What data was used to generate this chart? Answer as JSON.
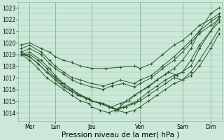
{
  "background_color": "#cce8d8",
  "grid_color": "#88c4a0",
  "line_color": "#2d5a2d",
  "marker": "+",
  "xlabel": "Pression niveau de la mer( hPa )",
  "xlabel_fontsize": 7.5,
  "yticks": [
    1014,
    1015,
    1016,
    1017,
    1018,
    1019,
    1020,
    1021,
    1022,
    1023
  ],
  "ylim": [
    1013.3,
    1023.5
  ],
  "xlim": [
    -0.1,
    7.1
  ],
  "xtick_positions": [
    0.3,
    1.2,
    2.5,
    4.2,
    5.7,
    6.7
  ],
  "xtick_labels": [
    "Mer",
    "Lun",
    "Jeu",
    "Ven",
    "Sam",
    "Dim"
  ],
  "vlines": [
    0.3,
    1.2,
    2.5,
    4.2,
    5.7,
    6.7
  ],
  "series": [
    {
      "x": [
        0.0,
        0.3,
        0.7,
        1.0,
        1.2,
        1.5,
        1.8,
        2.1,
        2.5,
        3.0,
        3.5,
        4.0,
        4.2,
        4.6,
        5.0,
        5.4,
        5.7,
        6.0,
        6.3,
        6.7,
        7.0
      ],
      "y": [
        1019.8,
        1020.0,
        1019.5,
        1019.2,
        1018.8,
        1018.5,
        1018.3,
        1018.0,
        1017.8,
        1017.8,
        1017.9,
        1018.0,
        1017.8,
        1018.2,
        1019.0,
        1019.8,
        1020.2,
        1020.8,
        1021.5,
        1022.0,
        1022.5
      ]
    },
    {
      "x": [
        0.0,
        0.3,
        0.7,
        1.0,
        1.2,
        1.5,
        1.8,
        2.1,
        2.5,
        2.9,
        3.2,
        3.5,
        4.0,
        4.2,
        4.6,
        5.0,
        5.4,
        5.7,
        6.0,
        6.3,
        6.7,
        7.0
      ],
      "y": [
        1019.5,
        1019.8,
        1019.2,
        1018.5,
        1018.0,
        1017.5,
        1017.0,
        1016.8,
        1016.5,
        1016.3,
        1016.5,
        1016.8,
        1016.5,
        1016.8,
        1017.2,
        1018.0,
        1018.8,
        1019.5,
        1020.2,
        1021.0,
        1021.8,
        1022.3
      ]
    },
    {
      "x": [
        0.0,
        0.3,
        0.7,
        1.0,
        1.2,
        1.5,
        1.8,
        2.1,
        2.5,
        2.9,
        3.2,
        3.6,
        4.0,
        4.2,
        4.6,
        5.0,
        5.4,
        5.7,
        6.0,
        6.3,
        6.7,
        7.0
      ],
      "y": [
        1019.2,
        1019.5,
        1019.0,
        1018.2,
        1017.8,
        1017.3,
        1016.8,
        1016.5,
        1016.2,
        1016.0,
        1016.3,
        1016.5,
        1016.2,
        1016.5,
        1017.0,
        1017.8,
        1018.5,
        1019.2,
        1020.0,
        1020.8,
        1021.5,
        1022.0
      ]
    },
    {
      "x": [
        0.0,
        0.3,
        0.7,
        1.0,
        1.2,
        1.5,
        1.8,
        2.1,
        2.5,
        2.9,
        3.2,
        3.5,
        3.8,
        4.0,
        4.2,
        4.5,
        4.8,
        5.2,
        5.5,
        5.7,
        6.0,
        6.3,
        6.7,
        7.0
      ],
      "y": [
        1019.0,
        1019.2,
        1018.5,
        1017.8,
        1017.2,
        1016.5,
        1016.0,
        1015.5,
        1015.0,
        1014.8,
        1014.5,
        1014.8,
        1015.0,
        1015.5,
        1015.8,
        1016.2,
        1016.8,
        1017.5,
        1017.2,
        1017.5,
        1018.5,
        1019.8,
        1021.0,
        1021.8
      ]
    },
    {
      "x": [
        0.0,
        0.3,
        0.6,
        0.9,
        1.2,
        1.4,
        1.7,
        2.0,
        2.3,
        2.5,
        2.8,
        3.1,
        3.4,
        3.7,
        4.0,
        4.2,
        4.5,
        4.8,
        5.1,
        5.4,
        5.7,
        6.0,
        6.3,
        6.7,
        7.0
      ],
      "y": [
        1019.0,
        1019.0,
        1018.5,
        1017.8,
        1017.0,
        1016.5,
        1016.0,
        1015.5,
        1015.2,
        1015.0,
        1014.8,
        1014.5,
        1014.3,
        1014.5,
        1014.8,
        1015.0,
        1015.5,
        1016.0,
        1016.5,
        1017.0,
        1016.8,
        1017.2,
        1018.0,
        1019.5,
        1020.8
      ]
    },
    {
      "x": [
        0.0,
        0.3,
        0.6,
        0.9,
        1.2,
        1.5,
        1.8,
        2.1,
        2.4,
        2.5,
        2.8,
        3.1,
        3.4,
        3.7,
        4.0,
        4.2,
        4.5,
        4.8,
        5.1,
        5.4,
        5.7,
        6.0,
        6.3,
        6.7,
        7.0
      ],
      "y": [
        1019.0,
        1018.8,
        1018.2,
        1017.5,
        1017.0,
        1016.5,
        1016.0,
        1015.5,
        1015.2,
        1015.0,
        1014.8,
        1014.5,
        1014.2,
        1014.0,
        1014.2,
        1014.5,
        1015.0,
        1015.5,
        1016.0,
        1016.5,
        1016.8,
        1017.5,
        1018.5,
        1020.0,
        1021.2
      ]
    },
    {
      "x": [
        0.0,
        0.3,
        0.6,
        0.9,
        1.2,
        1.5,
        1.8,
        2.1,
        2.4,
        2.5,
        2.8,
        3.1,
        3.4,
        3.6,
        3.9,
        4.1,
        4.2,
        4.5,
        4.8,
        5.1,
        5.4,
        5.7,
        6.0,
        6.3,
        6.7,
        7.0
      ],
      "y": [
        1019.2,
        1018.8,
        1018.2,
        1017.5,
        1016.8,
        1016.2,
        1015.8,
        1015.5,
        1015.2,
        1015.0,
        1014.8,
        1014.5,
        1014.3,
        1014.5,
        1014.8,
        1015.0,
        1015.2,
        1015.8,
        1016.3,
        1016.8,
        1017.2,
        1017.5,
        1018.0,
        1019.5,
        1021.0,
        1022.2
      ]
    },
    {
      "x": [
        0.0,
        0.3,
        0.6,
        0.9,
        1.2,
        1.5,
        1.8,
        2.1,
        2.4,
        2.5,
        2.8,
        3.1,
        3.3,
        3.5,
        3.7,
        4.0,
        4.2,
        4.5,
        4.8,
        5.1,
        5.4,
        5.7,
        6.0,
        6.3,
        6.7,
        7.0
      ],
      "y": [
        1019.0,
        1018.5,
        1017.8,
        1017.0,
        1016.5,
        1016.0,
        1015.5,
        1015.0,
        1014.8,
        1014.5,
        1014.2,
        1014.0,
        1014.2,
        1014.5,
        1015.0,
        1015.5,
        1015.8,
        1016.3,
        1016.8,
        1017.3,
        1017.8,
        1018.5,
        1019.5,
        1021.0,
        1022.5,
        1023.0
      ]
    }
  ]
}
